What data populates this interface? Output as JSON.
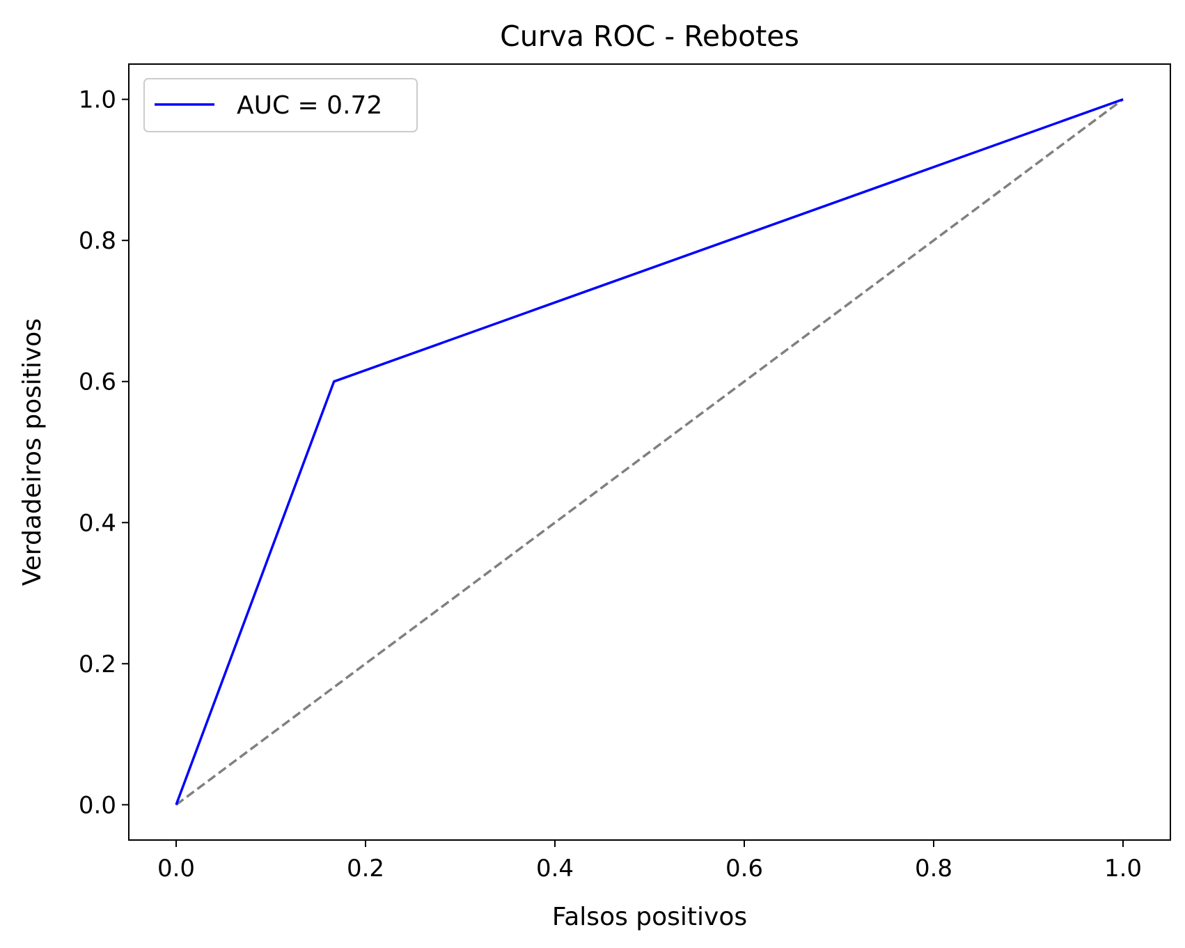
{
  "chart_data": {
    "type": "line",
    "title": "Curva ROC - Rebotes",
    "xlabel": "Falsos positivos",
    "ylabel": "Verdadeiros positivos",
    "xlim": [
      -0.05,
      1.05
    ],
    "ylim": [
      -0.05,
      1.05
    ],
    "x_ticks": [
      "0.0",
      "0.2",
      "0.4",
      "0.6",
      "0.8",
      "1.0"
    ],
    "y_ticks": [
      "0.0",
      "0.2",
      "0.4",
      "0.6",
      "0.8",
      "1.0"
    ],
    "grid": false,
    "legend_position": "upper-left",
    "series": [
      {
        "name": "AUC = 0.72",
        "color": "#0000ff",
        "style": "solid",
        "x": [
          0.0,
          0.1667,
          1.0
        ],
        "y": [
          0.0,
          0.6,
          1.0
        ]
      },
      {
        "color": "#808080",
        "style": "dashed",
        "x": [
          0.0,
          1.0
        ],
        "y": [
          0.0,
          1.0
        ]
      }
    ]
  }
}
